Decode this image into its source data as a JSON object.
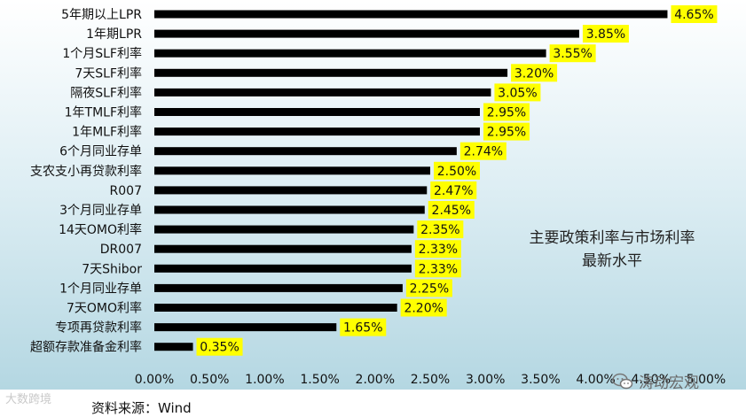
{
  "chart_data": {
    "type": "bar",
    "orientation": "horizontal",
    "categories": [
      "5年期以上LPR",
      "1年期LPR",
      "1个月SLF利率",
      "7天SLF利率",
      "隔夜SLF利率",
      "1年TMLF利率",
      "1年MLF利率",
      "6个月同业存单",
      "支农支小再贷款利率",
      "R007",
      "3个月同业存单",
      "14天OMO利率",
      "DR007",
      "7天Shibor",
      "1个月同业存单",
      "7天OMO利率",
      "专项再贷款利率",
      "超额存款准备金利率"
    ],
    "values": [
      4.65,
      3.85,
      3.55,
      3.2,
      3.05,
      2.95,
      2.95,
      2.74,
      2.5,
      2.47,
      2.45,
      2.35,
      2.33,
      2.33,
      2.25,
      2.2,
      1.65,
      0.35
    ],
    "value_labels": [
      "4.65%",
      "3.85%",
      "3.55%",
      "3.20%",
      "3.05%",
      "2.95%",
      "2.95%",
      "2.74%",
      "2.50%",
      "2.47%",
      "2.45%",
      "2.35%",
      "2.33%",
      "2.33%",
      "2.25%",
      "2.20%",
      "1.65%",
      "0.35%"
    ],
    "xlim": [
      0,
      5
    ],
    "xticks": [
      "0.00%",
      "0.50%",
      "1.00%",
      "1.50%",
      "2.00%",
      "2.50%",
      "3.00%",
      "3.50%",
      "4.00%",
      "4.50%",
      "5.00%"
    ],
    "bar_color": "#000000",
    "label_bg_color": "#ffff00",
    "grid": false,
    "title": "",
    "annotation_lines": [
      "主要政策利率与市场利率",
      "最新水平"
    ]
  },
  "source_text": "资料来源：Wind",
  "watermark_left": "大数跨境",
  "watermark_right": "涛动宏观",
  "icons": {
    "wechat": "wechat-icon"
  }
}
